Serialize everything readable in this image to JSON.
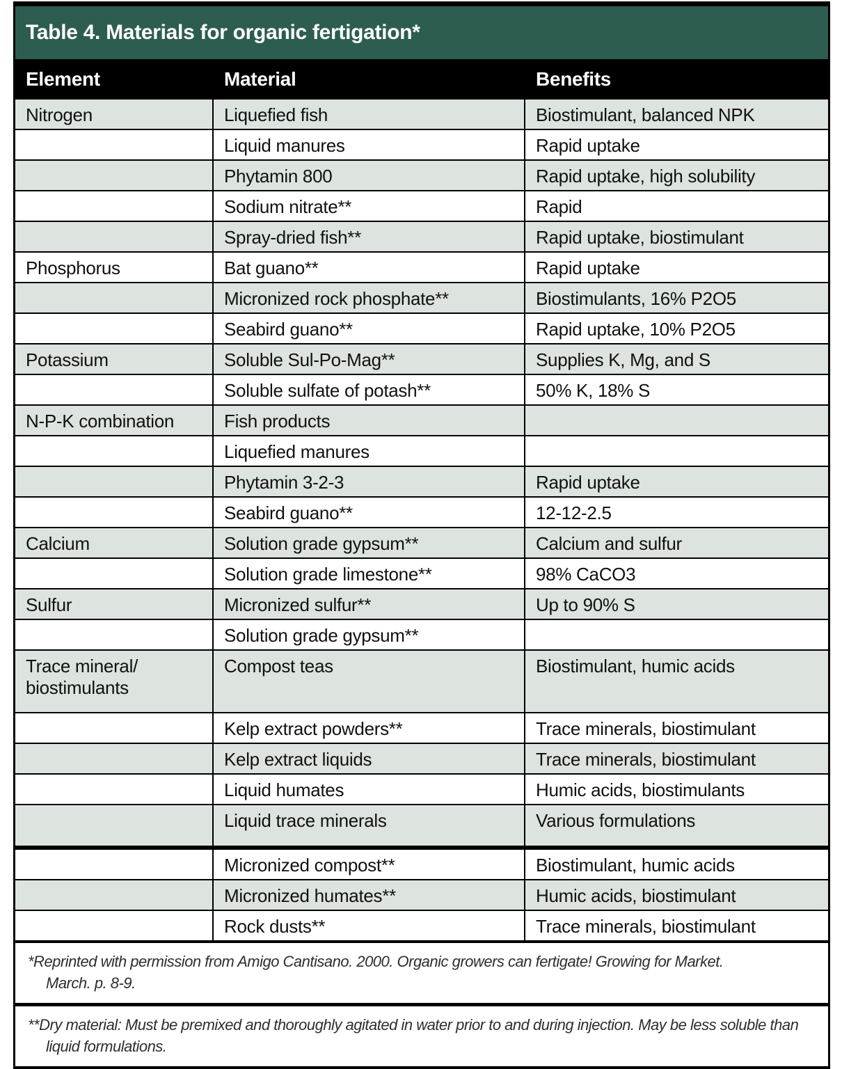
{
  "title": "Table 4. Materials for organic fertigation*",
  "columns": {
    "element": "Element",
    "material": "Material",
    "benefits": "Benefits"
  },
  "rows": [
    {
      "element": "Nitrogen",
      "material": "Liquefied fish",
      "benefits": "Biostimulant, balanced NPK"
    },
    {
      "element": "",
      "material": "Liquid manures",
      "benefits": "Rapid uptake"
    },
    {
      "element": "",
      "material": "Phytamin 800",
      "benefits": "Rapid uptake, high solubility"
    },
    {
      "element": "",
      "material": "Sodium nitrate**",
      "benefits": "Rapid"
    },
    {
      "element": "",
      "material": "Spray-dried fish**",
      "benefits": "Rapid uptake, biostimulant"
    },
    {
      "element": "Phosphorus",
      "material": "Bat guano**",
      "benefits": "Rapid uptake"
    },
    {
      "element": "",
      "material": "Micronized rock phosphate**",
      "benefits": "Biostimulants, 16% P2O5"
    },
    {
      "element": "",
      "material": "Seabird guano**",
      "benefits": "Rapid uptake, 10% P2O5"
    },
    {
      "element": "Potassium",
      "material": "Soluble Sul-Po-Mag**",
      "benefits": "Supplies K, Mg, and S"
    },
    {
      "element": "",
      "material": "Soluble sulfate of potash**",
      "benefits": "50% K, 18% S"
    },
    {
      "element": "N-P-K combination",
      "material": "Fish products",
      "benefits": ""
    },
    {
      "element": "",
      "material": "Liquefied manures",
      "benefits": ""
    },
    {
      "element": "",
      "material": "Phytamin 3-2-3",
      "benefits": "Rapid uptake"
    },
    {
      "element": "",
      "material": "Seabird guano**",
      "benefits": "12-12-2.5"
    },
    {
      "element": "Calcium",
      "material": "Solution grade gypsum**",
      "benefits": "Calcium and sulfur"
    },
    {
      "element": "",
      "material": "Solution grade limestone**",
      "benefits": "98% CaCO3"
    },
    {
      "element": "Sulfur",
      "material": "Micronized sulfur**",
      "benefits": "Up to 90% S"
    },
    {
      "element": "",
      "material": "Solution grade gypsum**",
      "benefits": ""
    },
    {
      "element": "Trace mineral/ biostimulants",
      "material": "Compost teas",
      "benefits": "Biostimulant, humic acids",
      "two_line_element": true
    },
    {
      "element": "",
      "material": "Kelp extract powders**",
      "benefits": "Trace minerals, biostimulant"
    },
    {
      "element": "",
      "material": "Kelp extract liquids",
      "benefits": "Trace minerals, biostimulant"
    },
    {
      "element": "",
      "material": "Liquid humates",
      "benefits": "Humic acids, biostimulants"
    },
    {
      "element": "",
      "material": "Liquid trace minerals",
      "benefits": "Various formulations",
      "section_break_below": true
    },
    {
      "element": "",
      "material": "Micronized compost**",
      "benefits": "Biostimulant, humic acids"
    },
    {
      "element": "",
      "material": "Micronized humates**",
      "benefits": "Humic acids, biostimulant"
    },
    {
      "element": "",
      "material": "Rock dusts**",
      "benefits": "Trace minerals, biostimulant"
    }
  ],
  "footnotes": [
    {
      "line1": "*Reprinted with permission from Amigo Cantisano. 2000. Organic growers can fertigate! Growing for Market.",
      "line2": "March. p. 8-9."
    },
    {
      "line1": "**Dry material: Must be premixed and thoroughly agitated in water prior to and during injection. May be less soluble than",
      "line2": "liquid formulations."
    }
  ],
  "colors": {
    "title_band": "#2D5D50",
    "header_row": "#000000",
    "row_shaded": "#DDE3DF",
    "row_plain": "#FFFFFF",
    "border": "#000000",
    "title_text": "#FFFFFF",
    "body_text": "#111111"
  }
}
